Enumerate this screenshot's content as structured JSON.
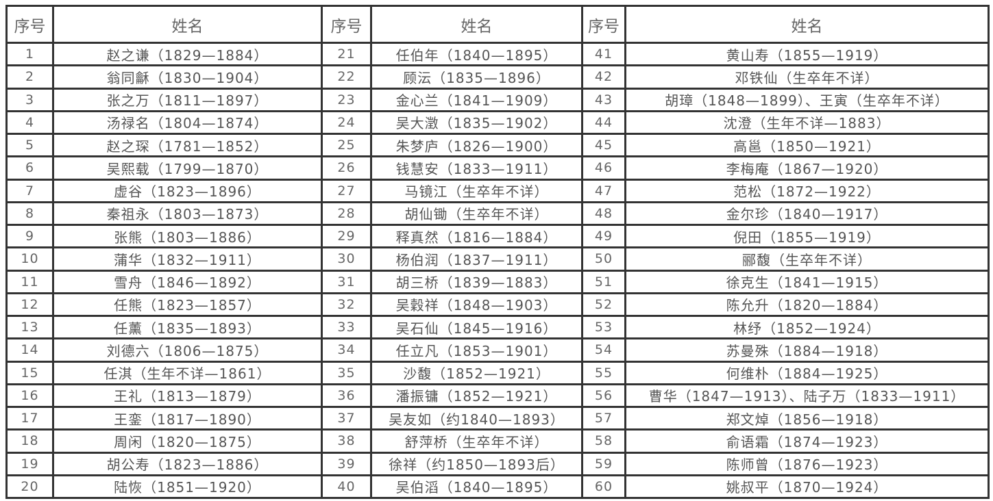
{
  "headers": [
    "序号",
    "姓名",
    "序号",
    "姓名",
    "序号",
    "姓名"
  ],
  "rows": [
    {
      "n": "1",
      "name": "赵之谦（1829—1884）"
    },
    {
      "n": "2",
      "name": "翁同龢（1830—1904）"
    },
    {
      "n": "3",
      "name": "张之万（1811—1897）"
    },
    {
      "n": "4",
      "name": "汤禄名（1804—1874）"
    },
    {
      "n": "5",
      "name": "赵之琛（1781—1852）"
    },
    {
      "n": "6",
      "name": "吴熙载（1799—1870）"
    },
    {
      "n": "7",
      "name": "虚谷（1823—1896）"
    },
    {
      "n": "8",
      "name": "秦祖永（1803—1873）"
    },
    {
      "n": "9",
      "name": "张熊（1803—1886）"
    },
    {
      "n": "10",
      "name": "蒲华（1832—1911）"
    },
    {
      "n": "11",
      "name": "雪舟（1846—1892）"
    },
    {
      "n": "12",
      "name": "任熊（1823—1857）"
    },
    {
      "n": "13",
      "name": "任薰（1835—1893）"
    },
    {
      "n": "14",
      "name": "刘德六（1806—1875）"
    },
    {
      "n": "15",
      "name": "任淇（生年不详—1861）"
    },
    {
      "n": "16",
      "name": "王礼（1813—1879）"
    },
    {
      "n": "17",
      "name": "王銮（1817—1890）"
    },
    {
      "n": "18",
      "name": "周闲（1820—1875）"
    },
    {
      "n": "19",
      "name": "胡公寿（1823—1886）"
    },
    {
      "n": "20",
      "name": "陆恢（1851—1920）"
    },
    {
      "n": "21",
      "name": "任伯年（1840—1895）"
    },
    {
      "n": "22",
      "name": "顾沄（1835—1896）"
    },
    {
      "n": "23",
      "name": "金心兰（1841—1909）"
    },
    {
      "n": "24",
      "name": "吴大澂（1835—1902）"
    },
    {
      "n": "25",
      "name": "朱梦庐（1826—1900）"
    },
    {
      "n": "26",
      "name": "钱慧安（1833—1911）"
    },
    {
      "n": "27",
      "name": "马镜江（生卒年不详）"
    },
    {
      "n": "28",
      "name": "胡仙锄（生卒年不详）"
    },
    {
      "n": "29",
      "name": "释真然（1816—1884）"
    },
    {
      "n": "30",
      "name": "杨伯润（1837—1911）"
    },
    {
      "n": "31",
      "name": "胡三桥（1839—1883）"
    },
    {
      "n": "32",
      "name": "吴穀祥（1848—1903）"
    },
    {
      "n": "33",
      "name": "吴石仙（1845—1916）"
    },
    {
      "n": "34",
      "name": "任立凡（1853—1901）"
    },
    {
      "n": "35",
      "name": "沙馥（1852—1921）"
    },
    {
      "n": "36",
      "name": "潘振镛（1852—1921）"
    },
    {
      "n": "37",
      "name": "吴友如（约1840—1893）"
    },
    {
      "n": "38",
      "name": "舒萍桥（生卒年不详）"
    },
    {
      "n": "39",
      "name": "徐祥（约1850—1893后）"
    },
    {
      "n": "40",
      "name": "吴伯滔（1840—1895）"
    },
    {
      "n": "41",
      "name": "黄山寿（1855—1919）"
    },
    {
      "n": "42",
      "name": "邓铁仙（生卒年不详）"
    },
    {
      "n": "43",
      "name": "胡璋（1848—1899）、王寅（生卒年不详）"
    },
    {
      "n": "44",
      "name": "沈澄（生年不详—1883）"
    },
    {
      "n": "45",
      "name": "高邕（1850—1921）"
    },
    {
      "n": "46",
      "name": "李梅庵（1867—1920）"
    },
    {
      "n": "47",
      "name": "范松（1872—1922）"
    },
    {
      "n": "48",
      "name": "金尔珍（1840—1917）"
    },
    {
      "n": "49",
      "name": "倪田（1855—1919）"
    },
    {
      "n": "50",
      "name": "郦馥（生卒年不详）"
    },
    {
      "n": "51",
      "name": "徐克生（1841—1915）"
    },
    {
      "n": "52",
      "name": "陈允升（1820—1884）"
    },
    {
      "n": "53",
      "name": "林纾（1852—1924）"
    },
    {
      "n": "54",
      "name": "苏曼殊（1884—1918）"
    },
    {
      "n": "55",
      "name": "何维朴（1884—1925）"
    },
    {
      "n": "56",
      "name": "曹华（1847—1913）、陆子万（1833—1911）"
    },
    {
      "n": "57",
      "name": "郑文焯（1856—1918）"
    },
    {
      "n": "58",
      "name": "俞语霜（1874—1923）"
    },
    {
      "n": "59",
      "name": "陈师曾（1876—1923）"
    },
    {
      "n": "60",
      "name": "姚叔平（1870—1924）"
    }
  ]
}
